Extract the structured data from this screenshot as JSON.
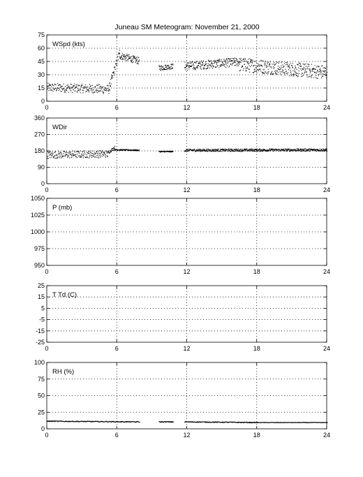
{
  "title": "Juneau SM Meteogram:  November 21, 2000",
  "chart_data": [
    {
      "type": "scatter",
      "label": "WSpd (kts)",
      "xlim": [
        0,
        24
      ],
      "xticks": [
        0,
        6,
        12,
        18,
        24
      ],
      "ylim": [
        0,
        75
      ],
      "yticks": [
        0,
        15,
        30,
        45,
        60,
        75
      ],
      "grid": true,
      "series": [
        {
          "segments": [
            {
              "x0": 0.0,
              "x1": 5.3,
              "y0": 16,
              "y1": 14,
              "spread": 5,
              "step": 0.025
            },
            {
              "x0": 5.3,
              "x1": 6.2,
              "y0": 14,
              "y1": 55,
              "spread": 5,
              "step": 0.02
            },
            {
              "x0": 6.2,
              "x1": 7.9,
              "y0": 52,
              "y1": 46,
              "spread": 4,
              "step": 0.02
            },
            {
              "x0": 9.6,
              "x1": 10.8,
              "y0": 38,
              "y1": 40,
              "spread": 3,
              "step": 0.02
            },
            {
              "x0": 11.8,
              "x1": 16.5,
              "y0": 40,
              "y1": 45,
              "spread": 5,
              "step": 0.02
            },
            {
              "x0": 16.5,
              "x1": 24.0,
              "y0": 42,
              "y1": 33,
              "spread": 8,
              "step": 0.02
            }
          ]
        }
      ]
    },
    {
      "type": "scatter",
      "label": "WDir",
      "xlim": [
        0,
        24
      ],
      "xticks": [
        0,
        6,
        12,
        18,
        24
      ],
      "ylim": [
        0,
        360
      ],
      "yticks": [
        0,
        90,
        180,
        270,
        360
      ],
      "grid": true,
      "series": [
        {
          "segments": [
            {
              "x0": 0.0,
              "x1": 5.2,
              "y0": 160,
              "y1": 165,
              "spread": 20,
              "step": 0.025
            },
            {
              "x0": 5.2,
              "x1": 5.8,
              "y0": 170,
              "y1": 200,
              "spread": 8,
              "step": 0.02
            },
            {
              "x0": 5.8,
              "x1": 7.9,
              "y0": 188,
              "y1": 185,
              "spread": 3,
              "step": 0.02
            },
            {
              "x0": 9.6,
              "x1": 10.8,
              "y0": 178,
              "y1": 178,
              "spread": 3,
              "step": 0.02
            },
            {
              "x0": 11.8,
              "x1": 24.0,
              "y0": 185,
              "y1": 187,
              "spread": 7,
              "step": 0.02
            }
          ]
        }
      ]
    },
    {
      "type": "scatter",
      "label": "P (mb)",
      "xlim": [
        0,
        24
      ],
      "xticks": [
        0,
        6,
        12,
        18,
        24
      ],
      "ylim": [
        950,
        1050
      ],
      "yticks": [
        950,
        975,
        1000,
        1025,
        1050
      ],
      "grid": true,
      "series": []
    },
    {
      "type": "scatter",
      "label": "T Td (C)",
      "xlim": [
        0,
        24
      ],
      "xticks": [
        0,
        6,
        12,
        18,
        24
      ],
      "ylim": [
        -25,
        25
      ],
      "yticks": [
        -25,
        -15,
        -5,
        5,
        15,
        25
      ],
      "grid": true,
      "series": []
    },
    {
      "type": "line",
      "label": "RH (%)",
      "xlim": [
        0,
        24
      ],
      "xticks": [
        0,
        6,
        12,
        18,
        24
      ],
      "ylim": [
        0,
        100
      ],
      "yticks": [
        0,
        25,
        50,
        75,
        100
      ],
      "grid": true,
      "series": [
        {
          "segments": [
            {
              "x0": 0.0,
              "x1": 7.9,
              "y0": 12,
              "y1": 11,
              "spread": 0.6,
              "step": 0.05
            },
            {
              "x0": 9.6,
              "x1": 10.8,
              "y0": 11,
              "y1": 11,
              "spread": 0.6,
              "step": 0.05
            },
            {
              "x0": 11.8,
              "x1": 18.0,
              "y0": 11,
              "y1": 10,
              "spread": 0.6,
              "step": 0.05
            },
            {
              "x0": 18.0,
              "x1": 24.0,
              "y0": 10,
              "y1": 10,
              "spread": 0.3,
              "step": 0.05
            }
          ]
        }
      ]
    }
  ]
}
